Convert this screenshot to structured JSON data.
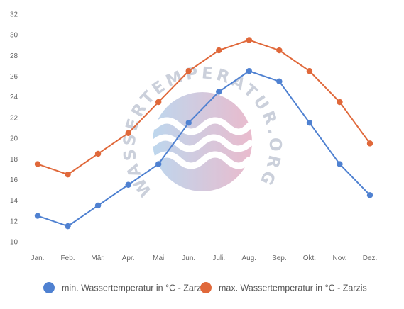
{
  "chart_data": {
    "type": "line",
    "categories": [
      "Jan.",
      "Feb.",
      "Mär.",
      "Apr.",
      "Mai",
      "Jun.",
      "Juli.",
      "Aug.",
      "Sep.",
      "Okt.",
      "Nov.",
      "Dez."
    ],
    "y_ticks": [
      "10",
      "12",
      "14",
      "16",
      "18",
      "20",
      "22",
      "24",
      "26",
      "28",
      "30",
      "32"
    ],
    "ylim": [
      10,
      32
    ],
    "grid": false,
    "legend_position": "bottom",
    "series": [
      {
        "name": "min. Wassertemperatur in °C - Zarzis",
        "color": "#4f81d1",
        "values": [
          12.5,
          11.5,
          13.5,
          15.5,
          17.5,
          21.5,
          24.5,
          26.5,
          25.5,
          21.5,
          17.5,
          14.5
        ]
      },
      {
        "name": "max. Wassertemperatur in °C - Zarzis",
        "color": "#e0683a",
        "values": [
          17.5,
          16.5,
          18.5,
          20.5,
          23.5,
          26.5,
          28.5,
          29.5,
          28.5,
          26.5,
          23.5,
          19.5
        ]
      }
    ]
  },
  "watermark": {
    "text": "WASSERTEMPERATUR.ORG",
    "icon": "waves-logo"
  }
}
